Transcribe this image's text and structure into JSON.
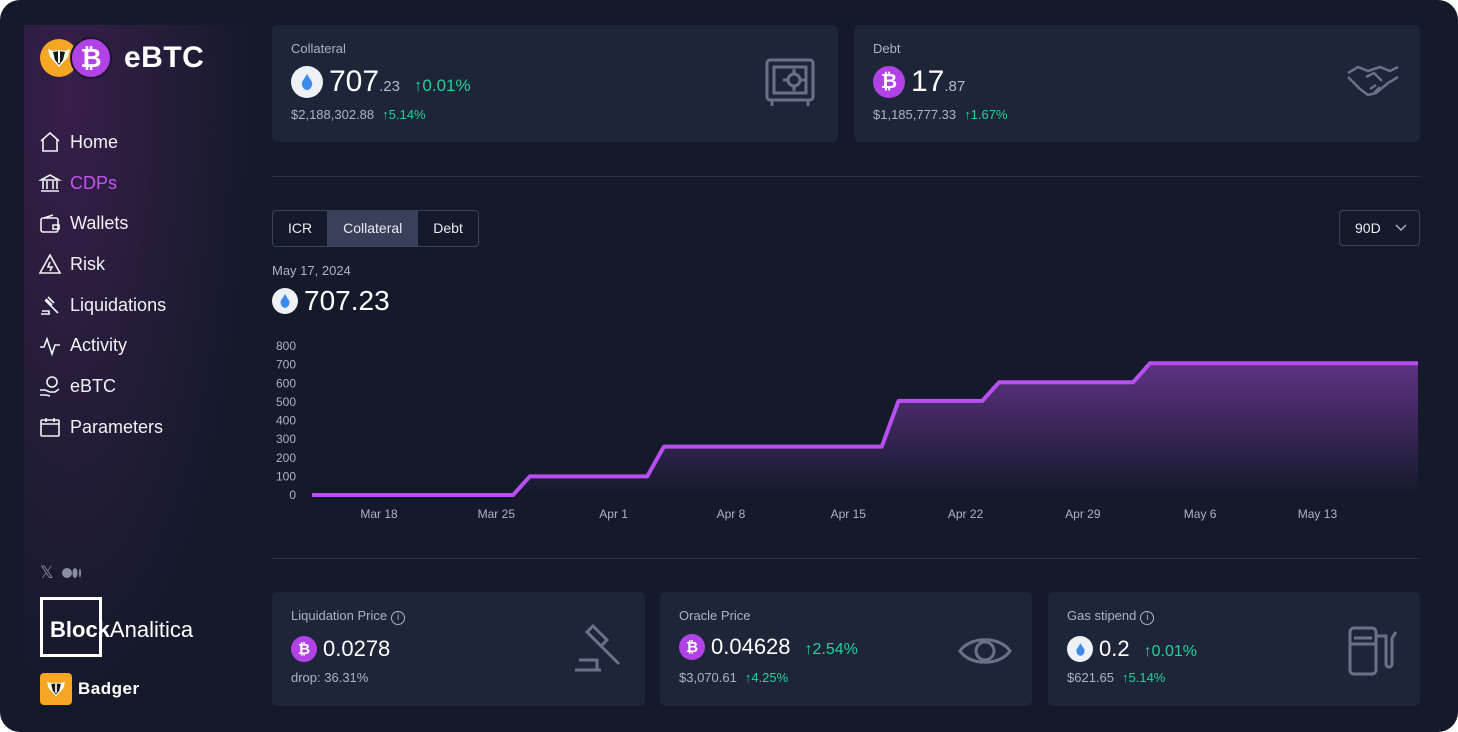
{
  "app": {
    "name": "eBTC"
  },
  "nav": [
    {
      "label": "Home",
      "icon": "home-icon",
      "active": false
    },
    {
      "label": "CDPs",
      "icon": "bank-icon",
      "active": true
    },
    {
      "label": "Wallets",
      "icon": "wallet-icon",
      "active": false
    },
    {
      "label": "Risk",
      "icon": "warning-icon",
      "active": false
    },
    {
      "label": "Liquidations",
      "icon": "gavel-icon",
      "active": false
    },
    {
      "label": "Activity",
      "icon": "activity-icon",
      "active": false
    },
    {
      "label": "eBTC",
      "icon": "coin-hand-icon",
      "active": false
    },
    {
      "label": "Parameters",
      "icon": "calendar-icon",
      "active": false
    }
  ],
  "footer": {
    "block_bold": "Block",
    "block_light": "Analitica",
    "badger": "Badger"
  },
  "collateral": {
    "label": "Collateral",
    "int": "707",
    "dec": ".23",
    "change": "↑0.01%",
    "usd": "$2,188,302.88",
    "usd_change": "↑5.14%"
  },
  "debt": {
    "label": "Debt",
    "int": "17",
    "dec": ".87",
    "usd": "$1,185,777.33",
    "usd_change": "↑1.67%"
  },
  "tabs": [
    "ICR",
    "Collateral",
    "Debt"
  ],
  "active_tab": "Collateral",
  "range": "90D",
  "chart_header": {
    "date": "May 17, 2024",
    "value": "707.23"
  },
  "chart_data": {
    "type": "area",
    "series": [
      {
        "values": [
          [
            "2024-03-14",
            0
          ],
          [
            "2024-03-26",
            0
          ],
          [
            "2024-03-27",
            100
          ],
          [
            "2024-04-03",
            100
          ],
          [
            "2024-04-04",
            260
          ],
          [
            "2024-04-17",
            260
          ],
          [
            "2024-04-18",
            505
          ],
          [
            "2024-04-23",
            505
          ],
          [
            "2024-04-24",
            605
          ],
          [
            "2024-05-02",
            605
          ],
          [
            "2024-05-03",
            707
          ],
          [
            "2024-05-19",
            707.23
          ]
        ]
      }
    ],
    "x_ticks": [
      "Mar 18",
      "Mar 25",
      "Apr 1",
      "Apr 8",
      "Apr 15",
      "Apr 22",
      "Apr 29",
      "May 6",
      "May 13"
    ],
    "x_tick_dates": [
      "2024-03-18",
      "2024-03-25",
      "2024-04-01",
      "2024-04-08",
      "2024-04-15",
      "2024-04-22",
      "2024-04-29",
      "2024-05-06",
      "2024-05-13"
    ],
    "y_ticks": [
      "800",
      "700",
      "600",
      "500",
      "400",
      "300",
      "200",
      "100",
      "0"
    ],
    "ylim": [
      0,
      800
    ],
    "xlim": [
      "2024-03-14",
      "2024-05-19"
    ],
    "color": "#b84ff0"
  },
  "liq_price": {
    "label": "Liquidation Price",
    "value": "0.0278",
    "sub": "drop: 36.31%"
  },
  "oracle_price": {
    "label": "Oracle Price",
    "value": "0.04628",
    "change": "↑2.54%",
    "usd": "$3,070.61",
    "usd_change": "↑4.25%"
  },
  "gas": {
    "label": "Gas stipend",
    "value": "0.2",
    "change": "↑0.01%",
    "usd": "$621.65",
    "usd_change": "↑5.14%"
  },
  "info_glyph": "i"
}
